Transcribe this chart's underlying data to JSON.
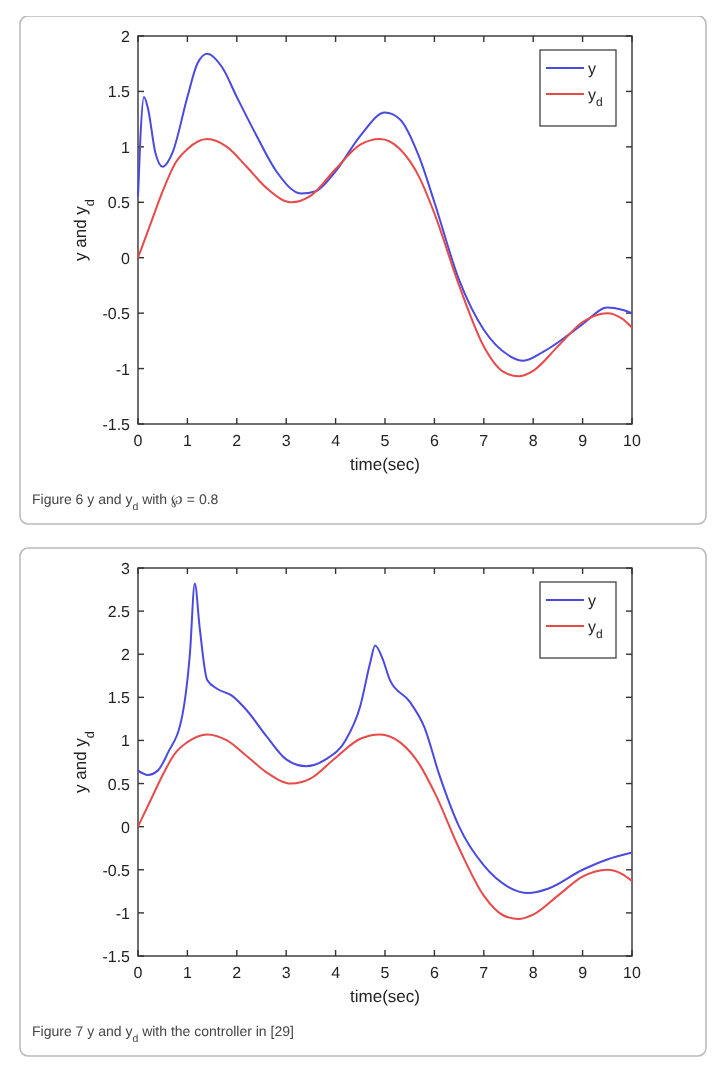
{
  "chart_data": [
    {
      "type": "line",
      "xlabel": "time(sec)",
      "ylabel": "y and y$_{d}$",
      "xlim": [
        0,
        10
      ],
      "ylim": [
        -1.5,
        2
      ],
      "xticks": [
        0,
        1,
        2,
        3,
        4,
        5,
        6,
        7,
        8,
        9,
        10
      ],
      "yticks": [
        -1.5,
        -1,
        -0.5,
        0,
        0.5,
        1,
        1.5,
        2
      ],
      "grid": false,
      "legend": "top right",
      "annotations": [
        "Figure 6  y and y$_{d}$ with ℘ = 0.8"
      ],
      "series": [
        {
          "name": "y",
          "color": "#4a4ae0",
          "x": [
            0,
            0.05,
            0.12,
            0.2,
            0.35,
            0.5,
            0.7,
            1,
            1.2,
            1.4,
            1.7,
            2,
            2.4,
            2.8,
            3.3,
            3.6,
            4,
            4.5,
            5,
            5.3,
            5.7,
            6,
            6.5,
            7,
            7.5,
            7.8,
            8.2,
            8.7,
            9,
            9.5,
            9.8,
            10
          ],
          "values": [
            0.55,
            1.1,
            1.45,
            1.35,
            0.95,
            0.82,
            0.95,
            1.45,
            1.75,
            1.84,
            1.72,
            1.45,
            1.1,
            0.78,
            0.58,
            0.6,
            0.78,
            1.1,
            1.31,
            1.25,
            0.9,
            0.5,
            -0.2,
            -0.65,
            -0.88,
            -0.93,
            -0.85,
            -0.7,
            -0.6,
            -0.45,
            -0.47,
            -0.5
          ]
        },
        {
          "name": "y$_{d}$",
          "color": "#e84a4a",
          "x": [
            0,
            0.25,
            0.5,
            0.75,
            1,
            1.4,
            1.8,
            2.2,
            2.6,
            3.1,
            3.5,
            4,
            4.5,
            4.9,
            5.3,
            5.7,
            6,
            6.5,
            7,
            7.4,
            7.7,
            8,
            8.5,
            9,
            9.5,
            9.8,
            10
          ],
          "values": [
            0,
            0.3,
            0.6,
            0.85,
            0.98,
            1.07,
            1,
            0.82,
            0.63,
            0.5,
            0.56,
            0.8,
            1.02,
            1.07,
            0.98,
            0.72,
            0.4,
            -0.25,
            -0.8,
            -1.03,
            -1.07,
            -1.02,
            -0.8,
            -0.58,
            -0.5,
            -0.55,
            -0.63
          ]
        }
      ]
    },
    {
      "type": "line",
      "xlabel": "time(sec)",
      "ylabel": "y and y$_{d}$",
      "xlim": [
        0,
        10
      ],
      "ylim": [
        -1.5,
        3
      ],
      "xticks": [
        0,
        1,
        2,
        3,
        4,
        5,
        6,
        7,
        8,
        9,
        10
      ],
      "yticks": [
        -1.5,
        -1,
        -0.5,
        0,
        0.5,
        1,
        1.5,
        2,
        2.5,
        3
      ],
      "grid": false,
      "legend": "top right",
      "annotations": [
        "Figure 7  y and y$_{d}$ with the controller in [29]"
      ],
      "series": [
        {
          "name": "y",
          "color": "#4a4ae0",
          "x": [
            0,
            0.2,
            0.4,
            0.6,
            0.9,
            1.05,
            1.15,
            1.25,
            1.4,
            1.6,
            1.9,
            2.2,
            2.6,
            3,
            3.4,
            3.8,
            4.2,
            4.5,
            4.7,
            4.8,
            4.95,
            5.1,
            5.5,
            5.8,
            6.1,
            6.5,
            7,
            7.5,
            7.9,
            8.3,
            9,
            9.5,
            10
          ],
          "values": [
            0.65,
            0.6,
            0.65,
            0.85,
            1.3,
            2,
            2.82,
            2.3,
            1.7,
            1.6,
            1.52,
            1.35,
            1.05,
            0.78,
            0.7,
            0.78,
            1,
            1.4,
            1.9,
            2.1,
            1.95,
            1.7,
            1.45,
            1.15,
            0.6,
            0,
            -0.45,
            -0.7,
            -0.77,
            -0.72,
            -0.5,
            -0.38,
            -0.3
          ]
        },
        {
          "name": "y$_{d}$",
          "color": "#e84a4a",
          "x": [
            0,
            0.25,
            0.5,
            0.75,
            1,
            1.4,
            1.8,
            2.2,
            2.6,
            3.1,
            3.5,
            4,
            4.5,
            4.9,
            5.3,
            5.7,
            6,
            6.5,
            7,
            7.4,
            7.7,
            8,
            8.5,
            9,
            9.5,
            9.8,
            10
          ],
          "values": [
            0,
            0.3,
            0.6,
            0.85,
            0.98,
            1.07,
            1,
            0.82,
            0.63,
            0.5,
            0.56,
            0.8,
            1.02,
            1.07,
            0.98,
            0.72,
            0.4,
            -0.25,
            -0.8,
            -1.03,
            -1.07,
            -1.02,
            -0.8,
            -0.58,
            -0.5,
            -0.55,
            -0.63
          ]
        }
      ]
    }
  ]
}
